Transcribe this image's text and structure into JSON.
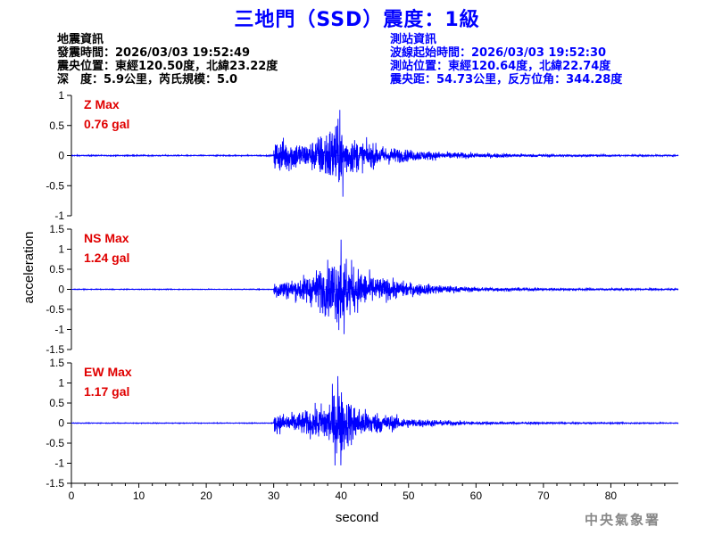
{
  "title": "三地門（SSD）震度：1級",
  "quake_info": {
    "heading": "地震資訊",
    "origin_time": "發震時間：2026/03/03 19:52:49",
    "epicenter": "震央位置：東經120.50度，北緯23.22度",
    "depth_magnitude": "深　度：5.9公里，芮氏規模：5.0"
  },
  "station_info": {
    "heading": "測站資訊",
    "wave_start": "波線起始時間：2026/03/03 19:52:30",
    "station_location": "測站位置：東經120.64度，北緯22.74度",
    "distance_azimuth": "震央距：54.73公里，反方位角：344.28度"
  },
  "credit": "中央氣象署",
  "colors": {
    "title": "#0000ff",
    "trace": "#0000ff",
    "peak_label": "#e00000",
    "axis": "#000000"
  },
  "chart_data": [
    {
      "type": "line",
      "component": "Z",
      "peak_label": "Z Max",
      "peak_value": "0.76 gal",
      "peak": 0.76,
      "ylim": [
        -1,
        1
      ],
      "yticks": [
        -1,
        -0.5,
        0,
        0.5,
        1
      ],
      "onset_s": 30,
      "max_time_s": 39.8,
      "envelope": {
        "x": [
          30,
          32,
          35,
          37,
          39,
          41,
          43,
          46,
          50,
          55,
          60,
          70,
          80,
          90
        ],
        "y": [
          0.35,
          0.35,
          0.25,
          0.45,
          0.7,
          0.4,
          0.3,
          0.2,
          0.12,
          0.08,
          0.05,
          0.03,
          0.02,
          0.015
        ]
      }
    },
    {
      "type": "line",
      "component": "NS",
      "peak_label": "NS Max",
      "peak_value": "1.24 gal",
      "peak": 1.24,
      "ylim": [
        -1.5,
        1.5
      ],
      "yticks": [
        -1.5,
        -1,
        -0.5,
        0,
        0.5,
        1,
        1.5
      ],
      "onset_s": 30,
      "max_time_s": 40.0,
      "envelope": {
        "x": [
          30,
          33,
          36,
          38,
          40,
          42,
          45,
          50,
          55,
          60,
          70,
          80,
          90
        ],
        "y": [
          0.3,
          0.3,
          0.55,
          0.8,
          1.2,
          0.7,
          0.4,
          0.22,
          0.12,
          0.07,
          0.04,
          0.03,
          0.02
        ]
      }
    },
    {
      "type": "line",
      "component": "EW",
      "peak_label": "EW Max",
      "peak_value": "1.17 gal",
      "peak": 1.17,
      "ylim": [
        -1.5,
        1.5
      ],
      "yticks": [
        -1.5,
        -1,
        -0.5,
        0,
        0.5,
        1,
        1.5
      ],
      "onset_s": 30,
      "max_time_s": 39.5,
      "envelope": {
        "x": [
          30,
          33,
          36,
          38,
          39.5,
          41,
          43,
          46,
          50,
          55,
          60,
          70,
          80,
          90
        ],
        "y": [
          0.3,
          0.3,
          0.45,
          0.7,
          1.15,
          0.75,
          0.45,
          0.3,
          0.15,
          0.09,
          0.05,
          0.03,
          0.02,
          0.015
        ]
      }
    }
  ],
  "x_axis": {
    "label": "second",
    "xlim": [
      0,
      90
    ],
    "ticks": [
      0,
      10,
      20,
      30,
      40,
      50,
      60,
      70,
      80
    ]
  },
  "y_axis_label": "acceleration"
}
